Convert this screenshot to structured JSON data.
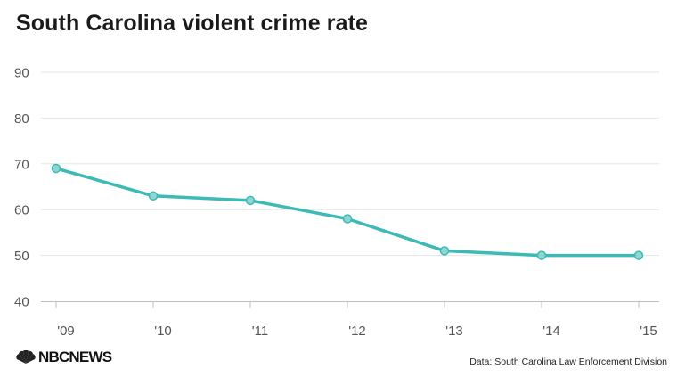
{
  "title": "South Carolina violent crime rate",
  "logo": {
    "text": "NBCNEWS",
    "icon": "peacock-logo-icon"
  },
  "source": "Data: South Carolina Law Enforcement Division",
  "colors": {
    "series": "#3dbab5",
    "grid": "#e6e6e6",
    "text": "#555555"
  },
  "chart_data": {
    "type": "line",
    "title": "South Carolina violent crime rate",
    "xlabel": "",
    "ylabel": "",
    "categories": [
      "'09",
      "'10",
      "'11",
      "'12",
      "'13",
      "'14",
      "'15"
    ],
    "series": [
      {
        "values": [
          69,
          63,
          62,
          58,
          51,
          50,
          50
        ]
      }
    ],
    "ylim": [
      40,
      90
    ],
    "yticks": [
      40,
      50,
      60,
      70,
      80,
      90
    ],
    "grid": true,
    "legend": "none"
  }
}
